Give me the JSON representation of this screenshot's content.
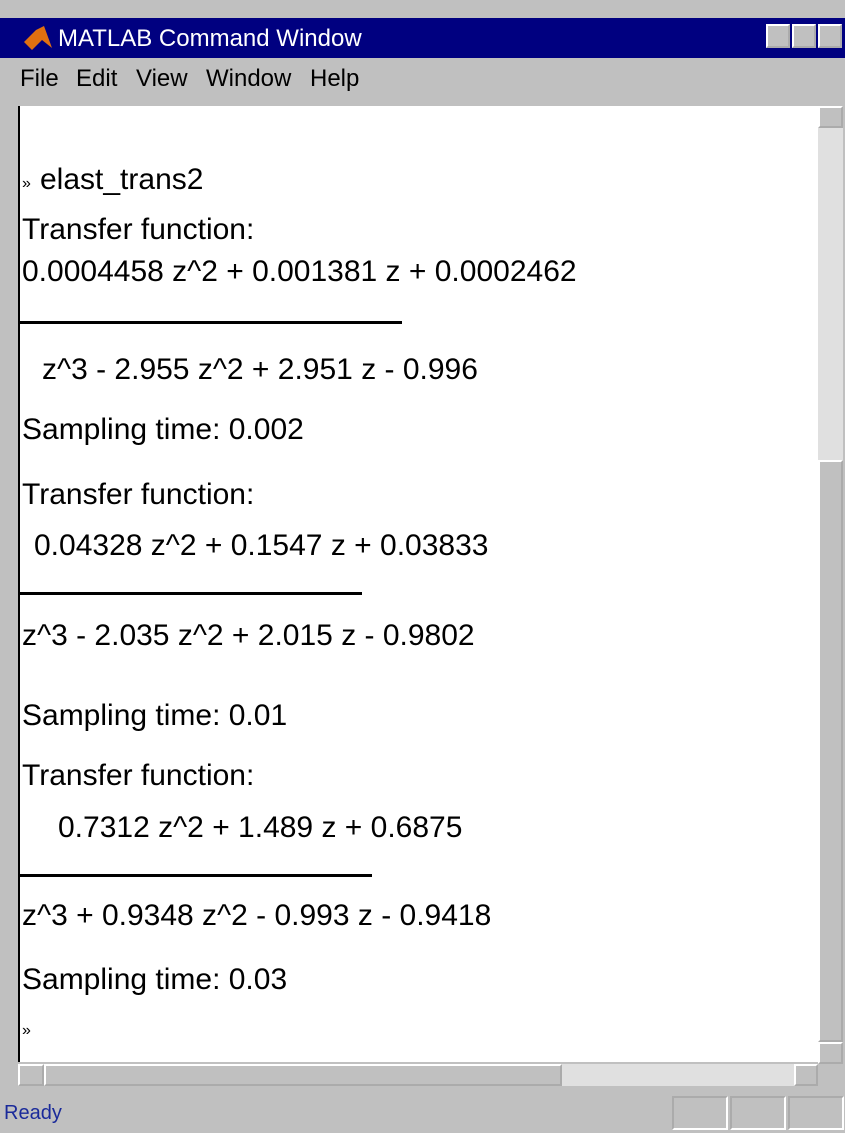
{
  "window": {
    "title": "MATLAB Command Window",
    "menu": [
      "File",
      "Edit",
      "View",
      "Window",
      "Help"
    ],
    "console": {
      "command": "elast_trans2",
      "prompt": "»",
      "lines": [
        "Transfer function:",
        "0.0004458 z^2 + 0.001381 z + 0.0002462",
        "z^3 - 2.955 z^2 + 2.951 z - 0.996",
        "Sampling time: 0.002",
        "Transfer function:",
        "0.04328 z^2 + 0.1547 z + 0.03833",
        "z^3 - 2.035 z^2 + 2.015 z - 0.9802",
        "Sampling time: 0.01",
        "Transfer function:",
        "0.7312 z^2 + 1.489 z + 0.6875",
        "z^3 + 0.9348 z^2 - 0.993 z - 0.9418",
        "Sampling time: 0.03"
      ]
    },
    "status": "Ready"
  }
}
